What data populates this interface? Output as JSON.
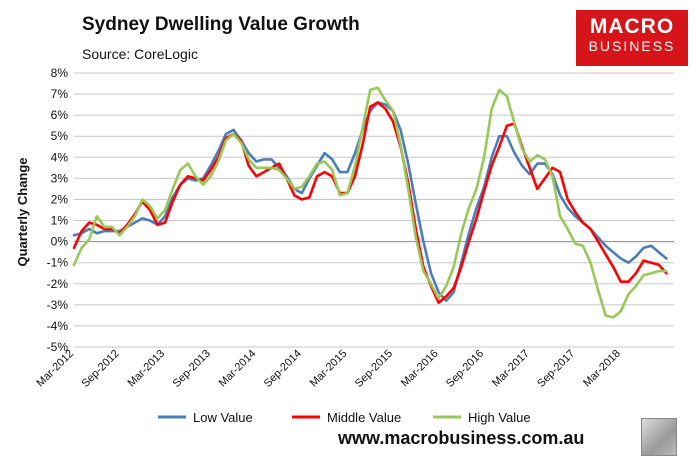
{
  "header": {
    "title": "Sydney Dwelling Value Growth",
    "source": "Source: CoreLogic"
  },
  "logo": {
    "line1": "MACRO",
    "line2": "BUSINESS"
  },
  "footer": {
    "url": "www.macrobusiness.com.au"
  },
  "colors": {
    "low": "#4a7ebb",
    "middle": "#ff0000",
    "high": "#98c85a",
    "grid": "#c8c8c8",
    "logo": "#d7141a"
  },
  "chart_data": {
    "type": "line",
    "title": "Sydney Dwelling Value Growth",
    "ylabel": "Quarterly Change",
    "xlabel": "",
    "ylim": [
      -5,
      8
    ],
    "y_ticks": [
      "-5%",
      "-4%",
      "-3%",
      "-2%",
      "-1%",
      "0%",
      "1%",
      "2%",
      "3%",
      "4%",
      "5%",
      "6%",
      "7%",
      "8%"
    ],
    "x_start_index": 0,
    "x_end_index": 79,
    "x_ticks": [
      {
        "index": 0,
        "label": "Mar-2012"
      },
      {
        "index": 6,
        "label": "Sep-2012"
      },
      {
        "index": 12,
        "label": "Mar-2013"
      },
      {
        "index": 18,
        "label": "Sep-2013"
      },
      {
        "index": 24,
        "label": "Mar-2014"
      },
      {
        "index": 30,
        "label": "Sep-2014"
      },
      {
        "index": 36,
        "label": "Mar-2015"
      },
      {
        "index": 42,
        "label": "Sep-2015"
      },
      {
        "index": 48,
        "label": "Mar-2016"
      },
      {
        "index": 54,
        "label": "Sep-2016"
      },
      {
        "index": 60,
        "label": "Mar-2017"
      },
      {
        "index": 66,
        "label": "Sep-2017"
      },
      {
        "index": 72,
        "label": "Mar-2018"
      }
    ],
    "legend_position": "bottom",
    "series": [
      {
        "name": "Low Value",
        "key": "low",
        "points": [
          [
            0,
            0.3
          ],
          [
            1,
            0.4
          ],
          [
            2,
            0.6
          ],
          [
            3,
            0.4
          ],
          [
            4,
            0.5
          ],
          [
            5,
            0.5
          ],
          [
            6,
            0.5
          ],
          [
            7,
            0.7
          ],
          [
            8,
            0.9
          ],
          [
            9,
            1.1
          ],
          [
            10,
            1.0
          ],
          [
            11,
            0.8
          ],
          [
            12,
            1.2
          ],
          [
            13,
            2.1
          ],
          [
            14,
            2.7
          ],
          [
            15,
            3.0
          ],
          [
            16,
            2.9
          ],
          [
            17,
            3.0
          ],
          [
            18,
            3.6
          ],
          [
            19,
            4.3
          ],
          [
            20,
            5.1
          ],
          [
            21,
            5.3
          ],
          [
            22,
            4.8
          ],
          [
            23,
            4.2
          ],
          [
            24,
            3.8
          ],
          [
            25,
            3.9
          ],
          [
            26,
            3.9
          ],
          [
            27,
            3.5
          ],
          [
            28,
            3.1
          ],
          [
            29,
            2.5
          ],
          [
            30,
            2.3
          ],
          [
            31,
            3.0
          ],
          [
            32,
            3.6
          ],
          [
            33,
            4.2
          ],
          [
            34,
            3.9
          ],
          [
            35,
            3.3
          ],
          [
            36,
            3.3
          ],
          [
            37,
            4.2
          ],
          [
            38,
            5.3
          ],
          [
            39,
            6.2
          ],
          [
            40,
            6.6
          ],
          [
            41,
            6.5
          ],
          [
            42,
            6.2
          ],
          [
            43,
            5.3
          ],
          [
            44,
            3.7
          ],
          [
            45,
            1.8
          ],
          [
            46,
            0.0
          ],
          [
            47,
            -1.5
          ],
          [
            48,
            -2.4
          ],
          [
            49,
            -2.8
          ],
          [
            50,
            -2.4
          ],
          [
            51,
            -1.0
          ],
          [
            52,
            0.4
          ],
          [
            53,
            1.6
          ],
          [
            54,
            2.6
          ],
          [
            55,
            4.0
          ],
          [
            56,
            5.0
          ],
          [
            57,
            5.0
          ],
          [
            58,
            4.2
          ],
          [
            59,
            3.6
          ],
          [
            60,
            3.2
          ],
          [
            61,
            3.7
          ],
          [
            62,
            3.7
          ],
          [
            63,
            3.2
          ],
          [
            64,
            2.2
          ],
          [
            65,
            1.6
          ],
          [
            66,
            1.2
          ],
          [
            67,
            0.9
          ],
          [
            68,
            0.6
          ],
          [
            69,
            0.2
          ],
          [
            70,
            -0.2
          ],
          [
            71,
            -0.5
          ],
          [
            72,
            -0.8
          ],
          [
            73,
            -1.0
          ],
          [
            74,
            -0.7
          ],
          [
            75,
            -0.3
          ],
          [
            76,
            -0.2
          ],
          [
            77,
            -0.5
          ],
          [
            78,
            -0.8
          ]
        ]
      },
      {
        "name": "Middle Value",
        "key": "middle",
        "points": [
          [
            0,
            -0.3
          ],
          [
            1,
            0.5
          ],
          [
            2,
            0.9
          ],
          [
            3,
            0.8
          ],
          [
            4,
            0.6
          ],
          [
            5,
            0.6
          ],
          [
            6,
            0.4
          ],
          [
            7,
            0.8
          ],
          [
            8,
            1.3
          ],
          [
            9,
            1.9
          ],
          [
            10,
            1.5
          ],
          [
            11,
            0.8
          ],
          [
            12,
            0.9
          ],
          [
            13,
            1.9
          ],
          [
            14,
            2.7
          ],
          [
            15,
            3.1
          ],
          [
            16,
            3.0
          ],
          [
            17,
            2.9
          ],
          [
            18,
            3.4
          ],
          [
            19,
            4.0
          ],
          [
            20,
            4.9
          ],
          [
            21,
            5.1
          ],
          [
            22,
            4.8
          ],
          [
            23,
            3.6
          ],
          [
            24,
            3.1
          ],
          [
            25,
            3.3
          ],
          [
            26,
            3.5
          ],
          [
            27,
            3.7
          ],
          [
            28,
            3.0
          ],
          [
            29,
            2.2
          ],
          [
            30,
            2.0
          ],
          [
            31,
            2.1
          ],
          [
            32,
            3.1
          ],
          [
            33,
            3.3
          ],
          [
            34,
            3.1
          ],
          [
            35,
            2.3
          ],
          [
            36,
            2.3
          ],
          [
            37,
            3.1
          ],
          [
            38,
            4.6
          ],
          [
            39,
            6.4
          ],
          [
            40,
            6.6
          ],
          [
            41,
            6.3
          ],
          [
            42,
            5.7
          ],
          [
            43,
            4.5
          ],
          [
            44,
            2.8
          ],
          [
            45,
            0.6
          ],
          [
            46,
            -1.2
          ],
          [
            47,
            -2.1
          ],
          [
            48,
            -2.9
          ],
          [
            49,
            -2.6
          ],
          [
            50,
            -2.2
          ],
          [
            51,
            -1.2
          ],
          [
            52,
            0.0
          ],
          [
            53,
            1.1
          ],
          [
            54,
            2.4
          ],
          [
            55,
            3.6
          ],
          [
            56,
            4.5
          ],
          [
            57,
            5.5
          ],
          [
            58,
            5.6
          ],
          [
            59,
            4.5
          ],
          [
            60,
            3.5
          ],
          [
            61,
            2.5
          ],
          [
            62,
            3.0
          ],
          [
            63,
            3.5
          ],
          [
            64,
            3.3
          ],
          [
            65,
            2.0
          ],
          [
            66,
            1.4
          ],
          [
            67,
            0.9
          ],
          [
            68,
            0.6
          ],
          [
            69,
            0.0
          ],
          [
            70,
            -0.6
          ],
          [
            71,
            -1.2
          ],
          [
            72,
            -1.9
          ],
          [
            73,
            -1.9
          ],
          [
            74,
            -1.5
          ],
          [
            75,
            -0.9
          ],
          [
            76,
            -1.0
          ],
          [
            77,
            -1.1
          ],
          [
            78,
            -1.5
          ]
        ]
      },
      {
        "name": "High Value",
        "key": "high",
        "points": [
          [
            0,
            -1.1
          ],
          [
            1,
            -0.3
          ],
          [
            2,
            0.1
          ],
          [
            3,
            1.2
          ],
          [
            4,
            0.7
          ],
          [
            5,
            0.7
          ],
          [
            6,
            0.3
          ],
          [
            7,
            0.7
          ],
          [
            8,
            1.2
          ],
          [
            9,
            2.0
          ],
          [
            10,
            1.7
          ],
          [
            11,
            1.1
          ],
          [
            12,
            1.5
          ],
          [
            13,
            2.5
          ],
          [
            14,
            3.4
          ],
          [
            15,
            3.7
          ],
          [
            16,
            3.1
          ],
          [
            17,
            2.7
          ],
          [
            18,
            3.1
          ],
          [
            19,
            3.8
          ],
          [
            20,
            4.8
          ],
          [
            21,
            5.1
          ],
          [
            22,
            4.7
          ],
          [
            23,
            3.9
          ],
          [
            24,
            3.5
          ],
          [
            25,
            3.5
          ],
          [
            26,
            3.5
          ],
          [
            27,
            3.4
          ],
          [
            28,
            3.0
          ],
          [
            29,
            2.5
          ],
          [
            30,
            2.6
          ],
          [
            31,
            3.1
          ],
          [
            32,
            3.7
          ],
          [
            33,
            3.8
          ],
          [
            34,
            3.4
          ],
          [
            35,
            2.2
          ],
          [
            36,
            2.3
          ],
          [
            37,
            3.6
          ],
          [
            38,
            5.4
          ],
          [
            39,
            7.2
          ],
          [
            40,
            7.3
          ],
          [
            41,
            6.7
          ],
          [
            42,
            6.2
          ],
          [
            43,
            4.6
          ],
          [
            44,
            2.5
          ],
          [
            45,
            0.2
          ],
          [
            46,
            -1.4
          ],
          [
            47,
            -2.0
          ],
          [
            48,
            -2.7
          ],
          [
            49,
            -2.1
          ],
          [
            50,
            -1.2
          ],
          [
            51,
            0.4
          ],
          [
            52,
            1.6
          ],
          [
            53,
            2.5
          ],
          [
            54,
            4.0
          ],
          [
            55,
            6.3
          ],
          [
            56,
            7.2
          ],
          [
            57,
            6.9
          ],
          [
            58,
            5.6
          ],
          [
            59,
            4.4
          ],
          [
            60,
            3.8
          ],
          [
            61,
            4.1
          ],
          [
            62,
            3.9
          ],
          [
            63,
            3.1
          ],
          [
            64,
            1.2
          ],
          [
            65,
            0.6
          ],
          [
            66,
            -0.1
          ],
          [
            67,
            -0.2
          ],
          [
            68,
            -1.0
          ],
          [
            69,
            -2.3
          ],
          [
            70,
            -3.5
          ],
          [
            71,
            -3.6
          ],
          [
            72,
            -3.3
          ],
          [
            73,
            -2.5
          ],
          [
            74,
            -2.1
          ],
          [
            75,
            -1.6
          ],
          [
            76,
            -1.5
          ],
          [
            77,
            -1.4
          ],
          [
            78,
            -1.4
          ]
        ]
      }
    ]
  }
}
